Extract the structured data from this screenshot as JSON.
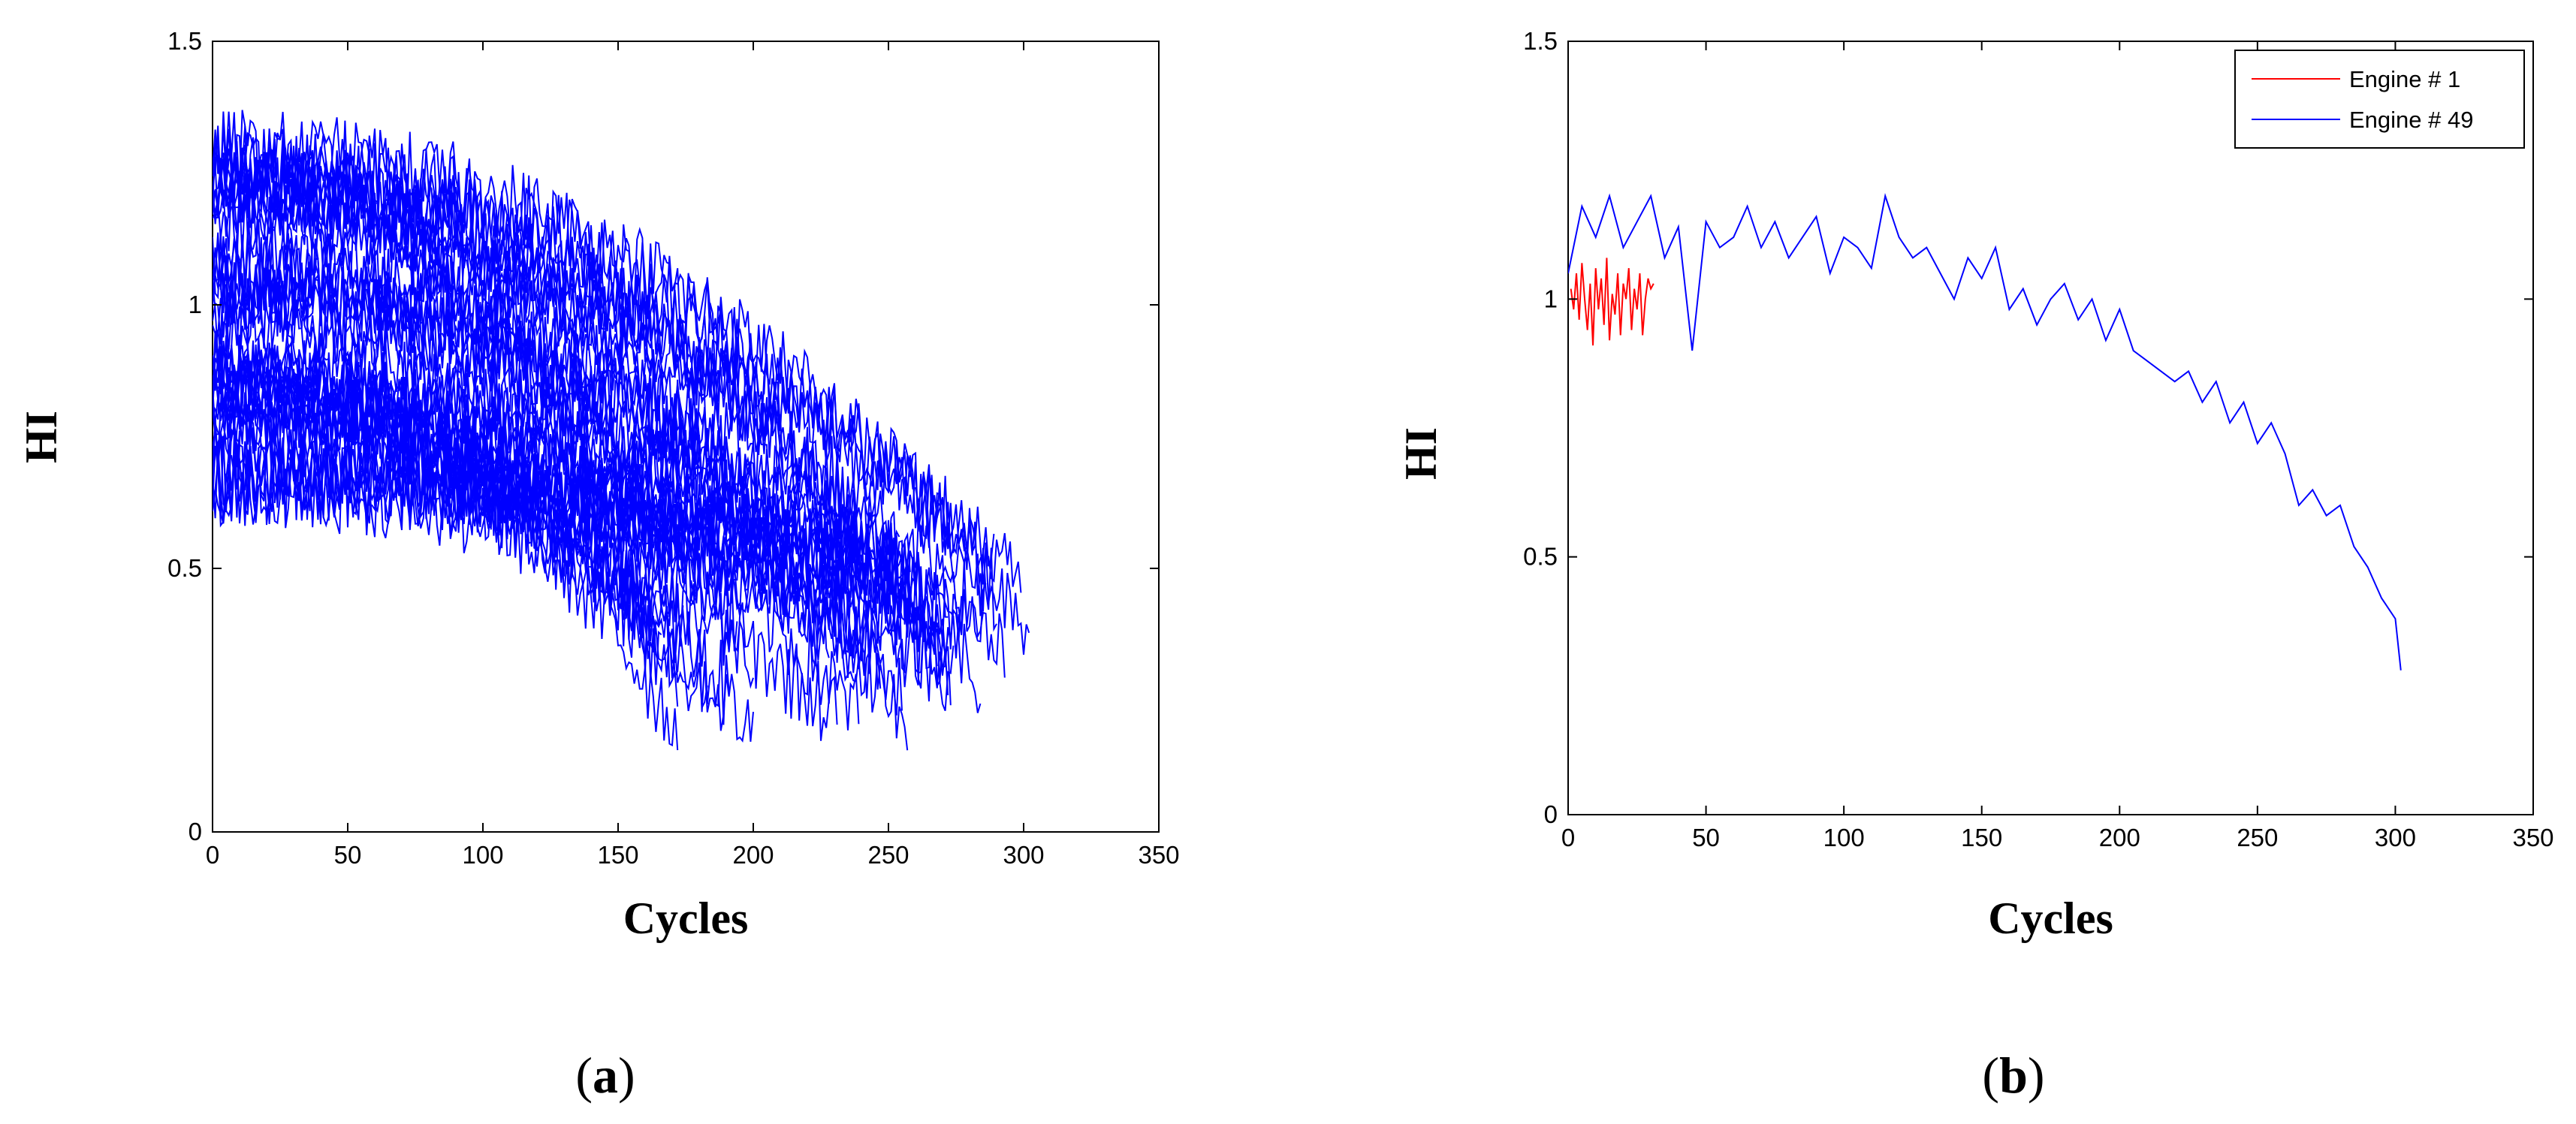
{
  "chart_data": [
    {
      "panel_label": "a",
      "type": "line",
      "xlabel": "Cycles",
      "ylabel": "HI",
      "xlim": [
        0,
        350
      ],
      "ylim": [
        0,
        1.5
      ],
      "xticks": [
        0,
        50,
        100,
        150,
        200,
        250,
        300,
        350
      ],
      "yticks": [
        0,
        0.5,
        1,
        1.5
      ],
      "xtick_labels": [
        "0",
        "50",
        "100",
        "150",
        "200",
        "250",
        "300",
        "350"
      ],
      "ytick_labels": [
        "0",
        "0.5",
        "1",
        "1.5"
      ],
      "grid": false,
      "series_color": "#0000ff",
      "series_count": 40,
      "series_summary": {
        "start_hi_range": [
          0.65,
          1.3
        ],
        "end_cycles_range": [
          160,
          302
        ],
        "end_hi_range": [
          0.18,
          0.55
        ],
        "max_cycle": 302,
        "min_hi_at_end": 0.26
      }
    },
    {
      "panel_label": "b",
      "type": "line",
      "xlabel": "Cycles",
      "ylabel": "HI",
      "xlim": [
        0,
        350
      ],
      "ylim": [
        0,
        1.5
      ],
      "xticks": [
        0,
        50,
        100,
        150,
        200,
        250,
        300,
        350
      ],
      "yticks": [
        0,
        0.5,
        1,
        1.5
      ],
      "xtick_labels": [
        "0",
        "50",
        "100",
        "150",
        "200",
        "250",
        "300",
        "350"
      ],
      "ytick_labels": [
        "0",
        "0.5",
        "1",
        "1.5"
      ],
      "grid": false,
      "legend_position": "top-right",
      "series": [
        {
          "name": "Engine # 1",
          "color": "#ff0000",
          "x": [
            1,
            2,
            3,
            4,
            5,
            6,
            7,
            8,
            9,
            10,
            11,
            12,
            13,
            14,
            15,
            16,
            17,
            18,
            19,
            20,
            21,
            22,
            23,
            24,
            25,
            26,
            27,
            28,
            29,
            30,
            31
          ],
          "values": [
            1.02,
            0.98,
            1.05,
            0.96,
            1.07,
            1.0,
            0.94,
            1.03,
            0.91,
            1.06,
            0.98,
            1.04,
            0.95,
            1.08,
            0.92,
            1.01,
            0.97,
            1.05,
            0.93,
            1.03,
            1.0,
            1.06,
            0.94,
            1.02,
            0.98,
            1.05,
            0.93,
            1.0,
            1.04,
            1.02,
            1.03
          ]
        },
        {
          "name": "Engine # 49",
          "color": "#0000ff",
          "x": [
            0,
            5,
            10,
            15,
            20,
            25,
            30,
            35,
            40,
            45,
            50,
            55,
            60,
            65,
            70,
            75,
            80,
            85,
            90,
            95,
            100,
            105,
            110,
            115,
            120,
            125,
            130,
            135,
            140,
            145,
            150,
            155,
            160,
            165,
            170,
            175,
            180,
            185,
            190,
            195,
            200,
            205,
            210,
            215,
            220,
            225,
            230,
            235,
            240,
            245,
            250,
            255,
            260,
            265,
            270,
            275,
            280,
            285,
            290,
            295,
            300,
            302
          ],
          "values": [
            1.05,
            1.18,
            1.12,
            1.2,
            1.1,
            1.15,
            1.2,
            1.08,
            1.14,
            0.9,
            1.15,
            1.1,
            1.12,
            1.18,
            1.1,
            1.15,
            1.08,
            1.12,
            1.16,
            1.05,
            1.12,
            1.1,
            1.06,
            1.2,
            1.12,
            1.08,
            1.1,
            1.05,
            1.0,
            1.08,
            1.04,
            1.1,
            0.98,
            1.02,
            0.95,
            1.0,
            1.03,
            0.96,
            1.0,
            0.92,
            0.98,
            0.9,
            0.88,
            0.86,
            0.84,
            0.86,
            0.8,
            0.84,
            0.76,
            0.8,
            0.72,
            0.76,
            0.7,
            0.6,
            0.63,
            0.58,
            0.6,
            0.52,
            0.48,
            0.42,
            0.38,
            0.28
          ]
        }
      ]
    }
  ]
}
